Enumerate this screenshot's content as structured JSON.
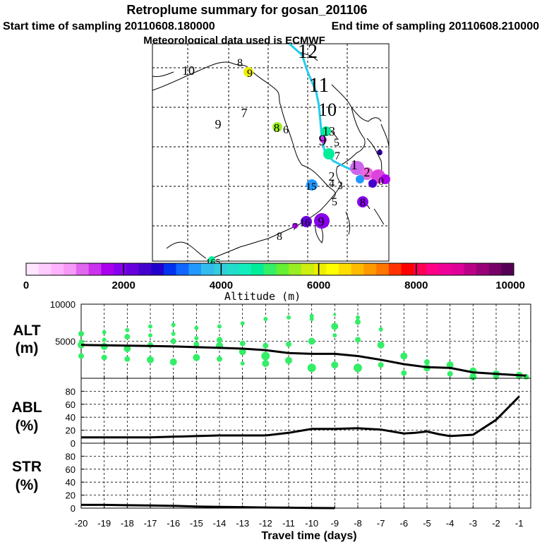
{
  "header": {
    "title": "Retroplume summary for gosan_201106",
    "start_label": "Start time of sampling 20110608.180000",
    "end_label": "End time of sampling 20110608.210000",
    "met_label": "Meteorological data used is ECMWF"
  },
  "colorbar": {
    "title": "Altitude (m)",
    "tick_labels": [
      "0",
      "2000",
      "4000",
      "6000",
      "8000",
      "10000"
    ],
    "min": 0,
    "max": 10000,
    "colors": [
      "#ffe6ff",
      "#ffccff",
      "#ffb3ff",
      "#f799f7",
      "#e066ee",
      "#cc33ee",
      "#aa00ee",
      "#8800ee",
      "#6600dd",
      "#4400cc",
      "#2200cc",
      "#0033ee",
      "#1166ff",
      "#2299ff",
      "#33bbee",
      "#33ccdd",
      "#22ddcc",
      "#11eebb",
      "#00ee99",
      "#33ee66",
      "#66ee33",
      "#99ee22",
      "#ccee11",
      "#eeee00",
      "#ffff00",
      "#ffdd00",
      "#ffbb00",
      "#ff9900",
      "#ff7700",
      "#ff3300",
      "#ff0000",
      "#ff0055",
      "#ff0088",
      "#ee0099",
      "#dd0099",
      "#bb0088",
      "#990077",
      "#770066",
      "#550055"
    ]
  },
  "map": {
    "labels": [
      {
        "text": "10",
        "color": "#000000"
      },
      {
        "text": "8",
        "color": "#ff6600"
      },
      {
        "text": "9",
        "color": "#000000"
      },
      {
        "text": "12",
        "color": "#000000"
      },
      {
        "text": "11",
        "color": "#000000"
      },
      {
        "text": "10",
        "color": "#000000"
      },
      {
        "text": "7",
        "color": "#008888"
      },
      {
        "text": "9",
        "color": "#008888"
      },
      {
        "text": "8",
        "color": "#000000"
      },
      {
        "text": "6",
        "color": "#aa00ee"
      },
      {
        "text": "13",
        "color": "#000000"
      },
      {
        "text": "9",
        "color": "#000000"
      },
      {
        "text": "5",
        "color": "#aa00ee"
      },
      {
        "text": "7",
        "color": "#000000"
      },
      {
        "text": "4",
        "color": "#000000"
      },
      {
        "text": "2",
        "color": "#000000"
      },
      {
        "text": "4",
        "color": "#000000"
      },
      {
        "text": "3",
        "color": "#000000"
      },
      {
        "text": "15",
        "color": "#ffffff"
      },
      {
        "text": "5",
        "color": "#aa00ee"
      },
      {
        "text": "8",
        "color": "#ffffff"
      },
      {
        "text": "16",
        "color": "#ffffff"
      },
      {
        "text": "9",
        "color": "#000000"
      },
      {
        "text": "7",
        "color": "#ffffff"
      },
      {
        "text": "8",
        "color": "#aa00ee"
      },
      {
        "text": "165",
        "color": "#000000"
      },
      {
        "text": "1",
        "color": "#000000"
      },
      {
        "text": "2",
        "color": "#000000"
      },
      {
        "text": "0",
        "color": "#000000"
      }
    ]
  },
  "chart_data": [
    {
      "type": "scatter",
      "title": "ALT",
      "ylabel": "ALT (m)",
      "label_line1": "ALT",
      "label_line2": "(m)",
      "xlim": [
        -20,
        -0.5
      ],
      "ylim": [
        0,
        10000
      ],
      "yticks": [
        5000,
        10000
      ],
      "line": {
        "x": [
          -20,
          -19,
          -18,
          -17,
          -16,
          -15,
          -14,
          -13,
          -12,
          -11,
          -10,
          -9,
          -8,
          -7,
          -6,
          -5,
          -4,
          -3,
          -2,
          -1,
          -0.7
        ],
        "y": [
          4500,
          4450,
          4400,
          4350,
          4300,
          4200,
          4100,
          4000,
          3800,
          3400,
          3300,
          3300,
          3000,
          2500,
          1900,
          1500,
          1400,
          800,
          600,
          400,
          350
        ]
      },
      "scatter": {
        "x": [
          -20,
          -20,
          -20,
          -20,
          -19,
          -19,
          -19,
          -19,
          -18,
          -18,
          -18,
          -18,
          -17,
          -17,
          -17,
          -17,
          -16,
          -16,
          -16,
          -16,
          -15,
          -15,
          -15,
          -15,
          -14,
          -14,
          -14,
          -14,
          -13,
          -13,
          -13,
          -13,
          -12,
          -12,
          -12,
          -12,
          -11,
          -11,
          -11,
          -10,
          -10,
          -10,
          -10,
          -9,
          -9,
          -9,
          -9,
          -8,
          -8,
          -8,
          -8,
          -7,
          -7,
          -7,
          -6,
          -6,
          -5,
          -5,
          -4,
          -4,
          -3,
          -3,
          -2,
          -2,
          -1,
          -0.7
        ],
        "y": [
          6000,
          4500,
          3000,
          5000,
          6200,
          4300,
          2800,
          5200,
          6500,
          4000,
          2600,
          5600,
          7000,
          4500,
          2500,
          5800,
          7200,
          5000,
          2200,
          6000,
          6800,
          4600,
          2800,
          5400,
          7000,
          5200,
          2600,
          4400,
          7400,
          4700,
          2000,
          3600,
          8000,
          4400,
          3000,
          2000,
          8200,
          4600,
          2400,
          8400,
          8000,
          1400,
          5000,
          8600,
          7000,
          1800,
          5800,
          8200,
          7600,
          1400,
          5200,
          6600,
          4500,
          1800,
          3000,
          700,
          2200,
          1400,
          1800,
          600,
          1000,
          200,
          600,
          200,
          400,
          200
        ],
        "s": [
          4,
          5,
          4,
          3,
          3,
          5,
          4,
          3,
          3,
          5,
          4,
          4,
          3,
          4,
          5,
          3,
          3,
          4,
          5,
          3,
          3,
          4,
          5,
          3,
          3,
          4,
          4,
          5,
          3,
          4,
          3,
          5,
          3,
          4,
          6,
          5,
          3,
          4,
          5,
          3,
          3,
          6,
          5,
          2,
          5,
          5,
          3,
          3,
          4,
          6,
          4,
          3,
          5,
          4,
          5,
          4,
          4,
          5,
          5,
          4,
          5,
          5,
          5,
          4,
          5,
          4
        ],
        "color": "#33ee66"
      }
    },
    {
      "type": "line",
      "title": "ABL",
      "ylabel": "ABL (%)",
      "label_line1": "ABL",
      "label_line2": "(%)",
      "xlim": [
        -20,
        -0.5
      ],
      "ylim": [
        0,
        100
      ],
      "yticks": [
        0,
        20,
        40,
        60,
        80
      ],
      "x": [
        -20,
        -19,
        -18,
        -17,
        -16,
        -15,
        -14,
        -13,
        -12,
        -11,
        -10,
        -9,
        -8,
        -7,
        -6,
        -5.5,
        -5,
        -4.5,
        -4,
        -3,
        -2,
        -1
      ],
      "values": [
        9,
        9,
        9,
        9,
        10,
        11,
        12,
        12,
        12,
        16,
        22,
        22,
        23,
        21,
        15,
        16,
        18,
        14,
        11,
        13,
        36,
        72
      ]
    },
    {
      "type": "line",
      "title": "STR",
      "ylabel": "STR (%)",
      "label_line1": "STR",
      "label_line2": "(%)",
      "xlabel": "Travel time (days)",
      "xlim": [
        -20,
        -0.5
      ],
      "ylim": [
        0,
        100
      ],
      "yticks": [
        0,
        20,
        40,
        60,
        80
      ],
      "xticks": [
        -20,
        -19,
        -18,
        -17,
        -16,
        -15,
        -14,
        -13,
        -12,
        -11,
        -10,
        -9,
        -8,
        -7,
        -6,
        -5,
        -4,
        -3,
        -2,
        -1
      ],
      "x": [
        -20,
        -19,
        -18,
        -17,
        -16,
        -15,
        -14,
        -13,
        -12,
        -11,
        -10,
        -9
      ],
      "values": [
        5,
        5,
        4.5,
        4,
        3.5,
        2.5,
        2,
        1.5,
        1,
        0.6,
        0.3,
        0
      ]
    }
  ]
}
